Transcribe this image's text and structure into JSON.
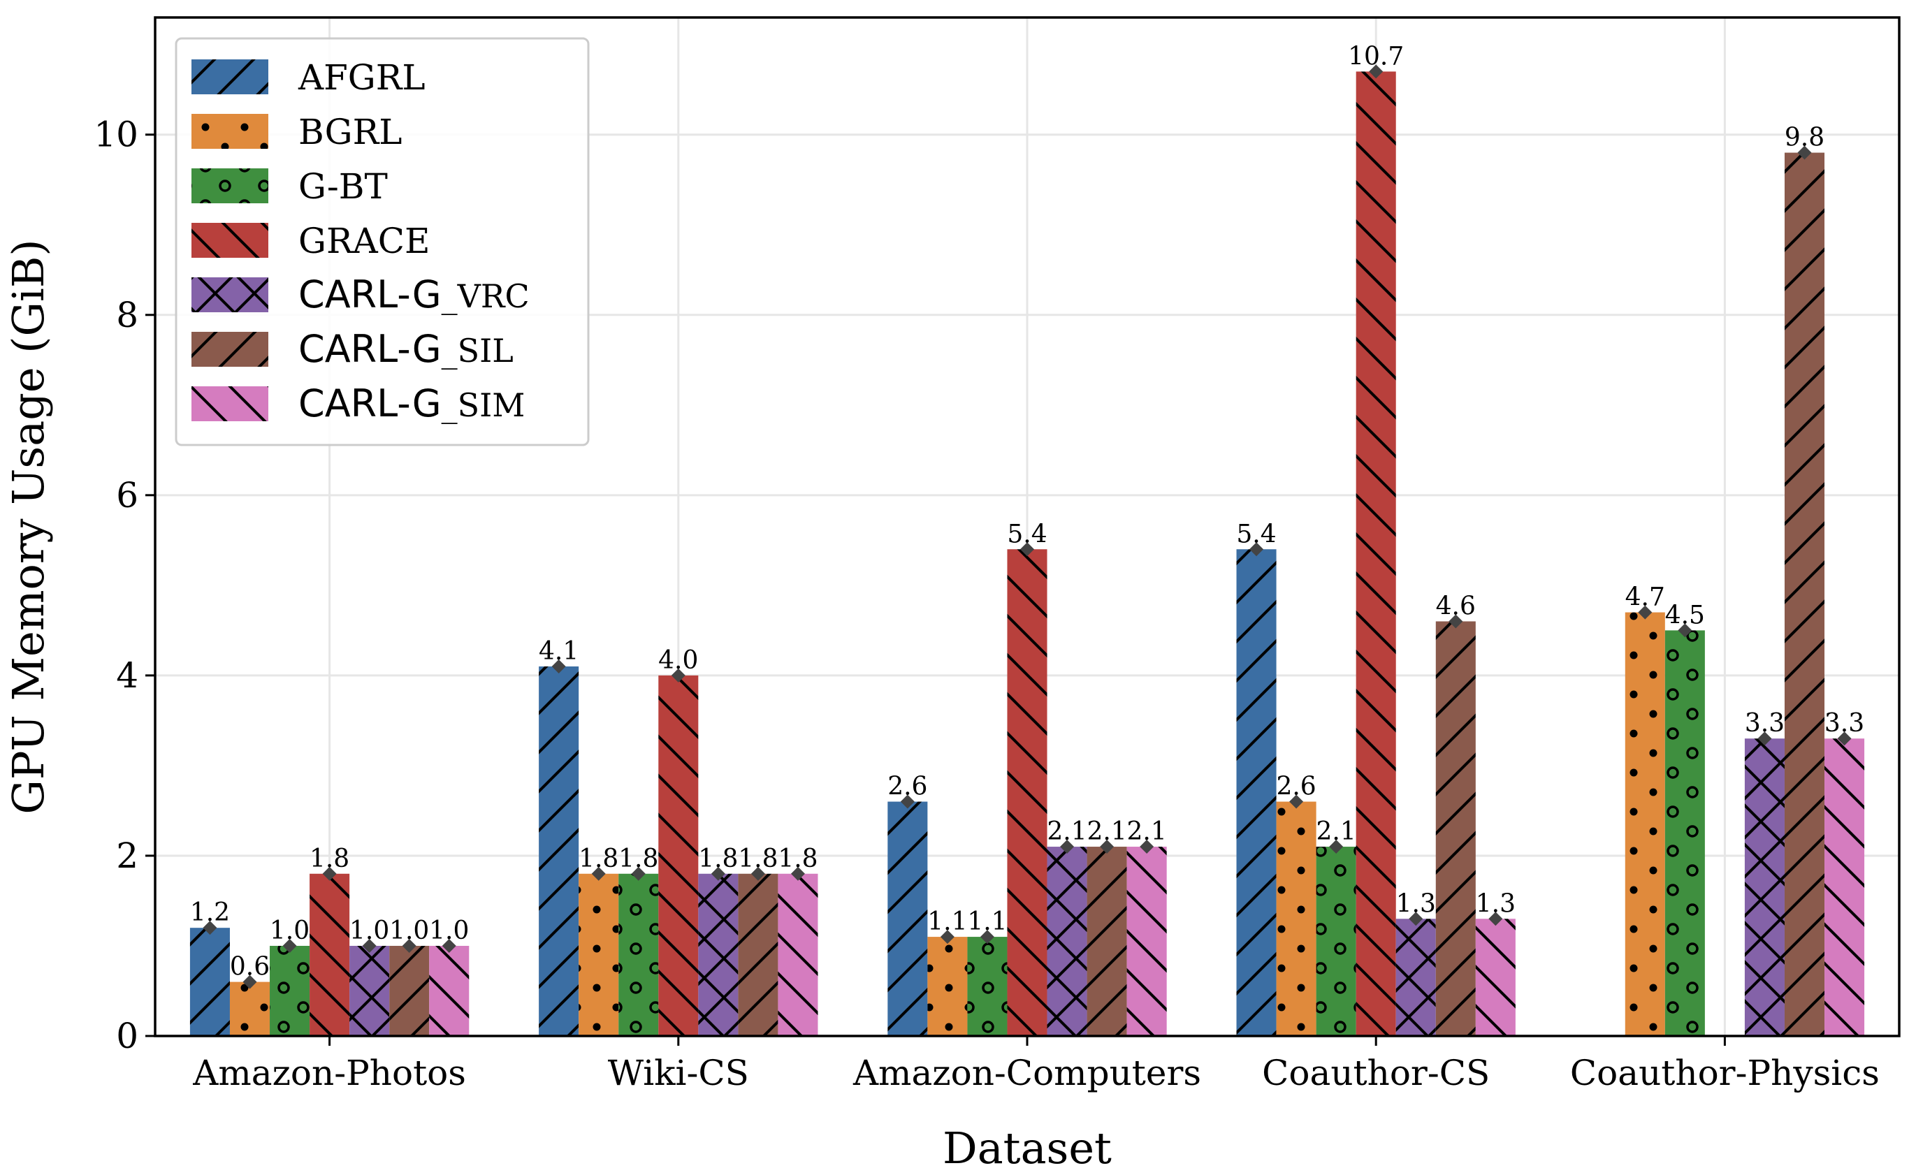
{
  "chart_data": {
    "type": "bar",
    "xlabel": "Dataset",
    "ylabel": "GPU Memory Usage (GiB)",
    "ylim": [
      0,
      11.3
    ],
    "yticks": [
      0,
      2,
      4,
      6,
      8,
      10
    ],
    "grid": true,
    "legend_position": "top-left",
    "categories": [
      "Amazon-Photos",
      "Wiki-CS",
      "Amazon-Computers",
      "Coauthor-CS",
      "Coauthor-Physics"
    ],
    "series": [
      {
        "name": "AFGRL",
        "legend_main": "AFGRL",
        "legend_sub": "",
        "color": "#3b6ea3",
        "pattern": "slash",
        "values": [
          1.2,
          4.1,
          2.6,
          5.4,
          null
        ],
        "labels": [
          "1.2",
          "4.1",
          "2.6",
          "5.4",
          ""
        ]
      },
      {
        "name": "BGRL",
        "legend_main": "BGRL",
        "legend_sub": "",
        "color": "#e08a3c",
        "pattern": "dots",
        "values": [
          0.6,
          1.8,
          1.1,
          2.6,
          4.7
        ],
        "labels": [
          "0.6",
          "1.8",
          "1.1",
          "2.6",
          "4.7"
        ]
      },
      {
        "name": "G-BT",
        "legend_main": "G-BT",
        "legend_sub": "",
        "color": "#3f8f3f",
        "pattern": "rings",
        "values": [
          1.0,
          1.8,
          1.1,
          2.1,
          4.5
        ],
        "labels": [
          "1.0",
          "1.8",
          "1.1",
          "2.1",
          "4.5"
        ]
      },
      {
        "name": "GRACE",
        "legend_main": "GRACE",
        "legend_sub": "",
        "color": "#b8403c",
        "pattern": "backslash",
        "values": [
          1.8,
          4.0,
          5.4,
          10.7,
          null
        ],
        "labels": [
          "1.8",
          "4.0",
          "5.4",
          "10.7",
          ""
        ]
      },
      {
        "name": "CARL-G_VRC",
        "legend_main": "CARL-G",
        "legend_sub": "_VRC",
        "color": "#8462a8",
        "pattern": "cross",
        "values": [
          1.0,
          1.8,
          2.1,
          1.3,
          3.3
        ],
        "labels": [
          "1.0",
          "1.8",
          "2.1",
          "1.3",
          "3.3"
        ]
      },
      {
        "name": "CARL-G_SIL",
        "legend_main": "CARL-G",
        "legend_sub": "_SIL",
        "color": "#8a5a4c",
        "pattern": "slash",
        "values": [
          1.0,
          1.8,
          2.1,
          4.6,
          9.8
        ],
        "labels": [
          "1.0",
          "1.8",
          "2.1",
          "4.6",
          "9.8"
        ]
      },
      {
        "name": "CARL-G_SIM",
        "legend_main": "CARL-G",
        "legend_sub": "_SIM",
        "color": "#d57cbf",
        "pattern": "backslash",
        "values": [
          1.0,
          1.8,
          2.1,
          1.3,
          3.3
        ],
        "labels": [
          "1.0",
          "1.8",
          "2.1",
          "1.3",
          "3.3"
        ]
      }
    ]
  }
}
